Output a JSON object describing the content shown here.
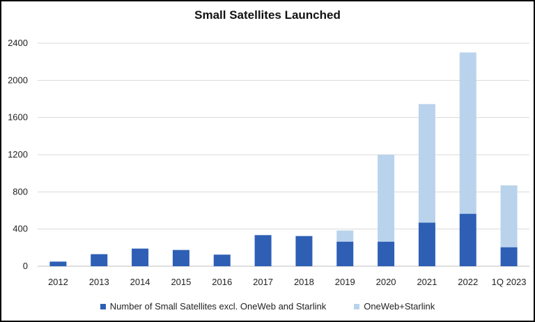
{
  "chart_data": {
    "type": "bar",
    "stacked": true,
    "title": "Small Satellites Launched",
    "categories": [
      "2012",
      "2013",
      "2014",
      "2015",
      "2016",
      "2017",
      "2018",
      "2019",
      "2020",
      "2021",
      "2022",
      "1Q 2023"
    ],
    "series": [
      {
        "name": "Number of Small Satellites excl. OneWeb and Starlink",
        "color": "#2e5fb5",
        "values": [
          50,
          130,
          190,
          175,
          125,
          335,
          325,
          265,
          265,
          470,
          565,
          205
        ]
      },
      {
        "name": "OneWeb+Starlink",
        "color": "#bad3ec",
        "values": [
          0,
          0,
          0,
          0,
          0,
          0,
          0,
          120,
          935,
          1275,
          1735,
          665
        ]
      }
    ],
    "ylim": [
      0,
      2400
    ],
    "yticks": [
      0,
      400,
      800,
      1200,
      1600,
      2000,
      2400
    ],
    "grid": true,
    "legend": "bottom"
  }
}
